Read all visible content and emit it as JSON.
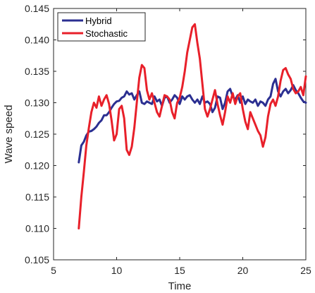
{
  "chart_data": {
    "type": "line",
    "title": "",
    "xlabel": "Time",
    "ylabel": "Wave speed",
    "xlim": [
      5,
      25
    ],
    "ylim": [
      0.105,
      0.145
    ],
    "xticks": [
      5,
      10,
      15,
      20,
      25
    ],
    "xtick_labels": [
      "5",
      "10",
      "15",
      "20",
      "25"
    ],
    "yticks": [
      0.105,
      0.11,
      0.115,
      0.12,
      0.125,
      0.13,
      0.135,
      0.14,
      0.145
    ],
    "ytick_labels": [
      "0.105",
      "0.110",
      "0.115",
      "0.120",
      "0.125",
      "0.130",
      "0.135",
      "0.140",
      "0.145"
    ],
    "grid": false,
    "legend_position": "top-left",
    "series": [
      {
        "name": "Hybrid",
        "color": "#2b2f91",
        "x": [
          7.0,
          7.2,
          7.4,
          7.6,
          7.8,
          8.0,
          8.2,
          8.4,
          8.6,
          8.8,
          9.0,
          9.2,
          9.4,
          9.6,
          9.8,
          10.0,
          10.2,
          10.4,
          10.6,
          10.8,
          11.0,
          11.2,
          11.4,
          11.6,
          11.8,
          12.0,
          12.2,
          12.4,
          12.6,
          12.8,
          13.0,
          13.2,
          13.4,
          13.6,
          13.8,
          14.0,
          14.2,
          14.4,
          14.6,
          14.8,
          15.0,
          15.2,
          15.4,
          15.6,
          15.8,
          16.0,
          16.2,
          16.4,
          16.6,
          16.8,
          17.0,
          17.2,
          17.4,
          17.6,
          17.8,
          18.0,
          18.2,
          18.4,
          18.6,
          18.8,
          19.0,
          19.2,
          19.4,
          19.6,
          19.8,
          20.0,
          20.2,
          20.4,
          20.6,
          20.8,
          21.0,
          21.2,
          21.4,
          21.6,
          21.8,
          22.0,
          22.2,
          22.4,
          22.6,
          22.8,
          23.0,
          23.2,
          23.4,
          23.6,
          23.8,
          24.0,
          24.2,
          24.4,
          24.6,
          24.8,
          25.0
        ],
        "values": [
          0.1205,
          0.1232,
          0.1238,
          0.1248,
          0.1254,
          0.1255,
          0.1258,
          0.1262,
          0.1268,
          0.1272,
          0.128,
          0.128,
          0.1285,
          0.1292,
          0.1298,
          0.1302,
          0.1303,
          0.1308,
          0.131,
          0.1318,
          0.1313,
          0.1315,
          0.1305,
          0.1312,
          0.1318,
          0.13,
          0.1298,
          0.1302,
          0.13,
          0.1298,
          0.131,
          0.1302,
          0.1305,
          0.1295,
          0.1308,
          0.131,
          0.13,
          0.1305,
          0.1312,
          0.1308,
          0.1298,
          0.131,
          0.1305,
          0.131,
          0.1312,
          0.1305,
          0.13,
          0.1305,
          0.1298,
          0.131,
          0.13,
          0.1302,
          0.1298,
          0.1285,
          0.1292,
          0.131,
          0.1308,
          0.129,
          0.13,
          0.1318,
          0.1322,
          0.131,
          0.1305,
          0.1312,
          0.13,
          0.131,
          0.1298,
          0.1305,
          0.1302,
          0.13,
          0.1305,
          0.1295,
          0.1302,
          0.13,
          0.1295,
          0.1305,
          0.131,
          0.133,
          0.1338,
          0.1318,
          0.131,
          0.1318,
          0.1322,
          0.1315,
          0.132,
          0.1328,
          0.132,
          0.1315,
          0.1308,
          0.1302,
          0.13
        ]
      },
      {
        "name": "Stochastic",
        "color": "#e8202a",
        "x": [
          7.0,
          7.2,
          7.4,
          7.6,
          7.8,
          8.0,
          8.2,
          8.4,
          8.6,
          8.8,
          9.0,
          9.2,
          9.4,
          9.6,
          9.8,
          10.0,
          10.2,
          10.4,
          10.6,
          10.8,
          11.0,
          11.2,
          11.4,
          11.6,
          11.8,
          12.0,
          12.2,
          12.4,
          12.6,
          12.8,
          13.0,
          13.2,
          13.4,
          13.6,
          13.8,
          14.0,
          14.2,
          14.4,
          14.6,
          14.8,
          15.0,
          15.2,
          15.4,
          15.6,
          15.8,
          16.0,
          16.2,
          16.4,
          16.6,
          16.8,
          17.0,
          17.2,
          17.4,
          17.6,
          17.8,
          18.0,
          18.2,
          18.4,
          18.6,
          18.8,
          19.0,
          19.2,
          19.4,
          19.6,
          19.8,
          20.0,
          20.2,
          20.4,
          20.6,
          20.8,
          21.0,
          21.2,
          21.4,
          21.6,
          21.8,
          22.0,
          22.2,
          22.4,
          22.6,
          22.8,
          23.0,
          23.2,
          23.4,
          23.6,
          23.8,
          24.0,
          24.2,
          24.4,
          24.6,
          24.8,
          25.0
        ],
        "values": [
          0.11,
          0.115,
          0.119,
          0.1232,
          0.126,
          0.1285,
          0.13,
          0.1292,
          0.131,
          0.1295,
          0.1305,
          0.1312,
          0.1298,
          0.1272,
          0.124,
          0.125,
          0.129,
          0.1295,
          0.1275,
          0.1225,
          0.1217,
          0.123,
          0.126,
          0.13,
          0.134,
          0.136,
          0.1355,
          0.132,
          0.1305,
          0.1315,
          0.13,
          0.1285,
          0.1278,
          0.1295,
          0.1312,
          0.131,
          0.1305,
          0.1285,
          0.1275,
          0.13,
          0.1308,
          0.1325,
          0.135,
          0.138,
          0.14,
          0.142,
          0.1425,
          0.1395,
          0.137,
          0.133,
          0.129,
          0.1278,
          0.129,
          0.1305,
          0.132,
          0.1298,
          0.128,
          0.1265,
          0.1285,
          0.131,
          0.13,
          0.1315,
          0.1298,
          0.131,
          0.1315,
          0.129,
          0.127,
          0.1258,
          0.1285,
          0.1275,
          0.1265,
          0.1255,
          0.1248,
          0.123,
          0.1245,
          0.1278,
          0.1298,
          0.1305,
          0.1295,
          0.131,
          0.1335,
          0.1352,
          0.1355,
          0.1345,
          0.1338,
          0.1322,
          0.1315,
          0.1318,
          0.1325,
          0.1312,
          0.1342
        ]
      }
    ]
  }
}
